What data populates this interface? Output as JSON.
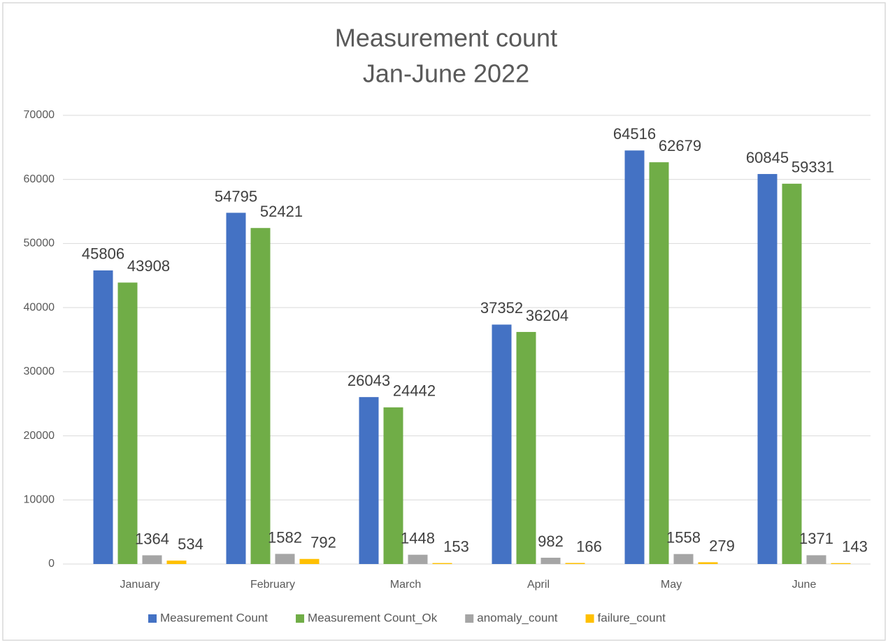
{
  "chart_data": {
    "type": "bar",
    "title": "Measurement count",
    "subtitle": "Jan-June 2022",
    "categories": [
      "January",
      "February",
      "March",
      "April",
      "May",
      "June"
    ],
    "series": [
      {
        "name": "Measurement Count",
        "color": "#4472c4",
        "values": [
          45806,
          54795,
          26043,
          37352,
          64516,
          60845
        ]
      },
      {
        "name": "Measurement Count_Ok",
        "color": "#70ad47",
        "values": [
          43908,
          52421,
          24442,
          36204,
          62679,
          59331
        ]
      },
      {
        "name": "anomaly_count",
        "color": "#a5a5a5",
        "values": [
          1364,
          1582,
          1448,
          982,
          1558,
          1371
        ]
      },
      {
        "name": "failure_count",
        "color": "#ffc000",
        "values": [
          534,
          792,
          153,
          166,
          279,
          143
        ]
      }
    ],
    "ylim": [
      0,
      70000
    ],
    "yticks": [
      0,
      10000,
      20000,
      30000,
      40000,
      50000,
      60000,
      70000
    ],
    "grid": true,
    "legend": "bottom"
  }
}
